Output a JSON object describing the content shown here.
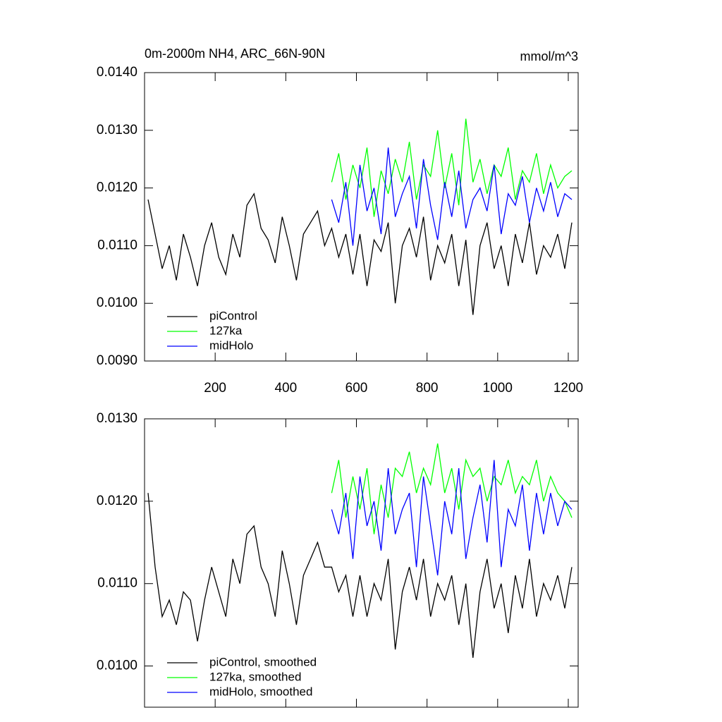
{
  "chart_data": [
    {
      "type": "line",
      "title": "0m-2000m NH4, ARC_66N-90N",
      "title_right": "mmol/m^3",
      "x": [
        10,
        30,
        50,
        70,
        90,
        110,
        130,
        150,
        170,
        190,
        210,
        230,
        250,
        270,
        290,
        310,
        330,
        350,
        370,
        390,
        410,
        430,
        450,
        470,
        490,
        510,
        530,
        550,
        570,
        590,
        610,
        630,
        650,
        670,
        690,
        710,
        730,
        750,
        770,
        790,
        810,
        830,
        850,
        870,
        890,
        910,
        930,
        950,
        970,
        990,
        1010,
        1030,
        1050,
        1070,
        1090,
        1110,
        1130,
        1150,
        1170,
        1190,
        1210
      ],
      "series": [
        {
          "name": "piControl",
          "color": "#000000",
          "values": [
            0.0118,
            0.0112,
            0.0106,
            0.011,
            0.0104,
            0.0112,
            0.0108,
            0.0103,
            0.011,
            0.0114,
            0.0108,
            0.0105,
            0.0112,
            0.0108,
            0.0117,
            0.0119,
            0.0113,
            0.0111,
            0.0107,
            0.0115,
            0.011,
            0.0104,
            0.0112,
            0.0114,
            0.0116,
            0.011,
            0.0113,
            0.0108,
            0.0112,
            0.0105,
            0.0112,
            0.0103,
            0.0111,
            0.0109,
            0.0114,
            0.01,
            0.011,
            0.0113,
            0.0108,
            0.0115,
            0.0104,
            0.011,
            0.0107,
            0.0112,
            0.0103,
            0.0111,
            0.0098,
            0.011,
            0.0114,
            0.0106,
            0.011,
            0.0103,
            0.0112,
            0.0107,
            0.0114,
            0.0105,
            0.011,
            0.0108,
            0.0112,
            0.0106,
            0.0114
          ]
        },
        {
          "name": "127ka",
          "color": "#00ff00",
          "values": [
            null,
            null,
            null,
            null,
            null,
            null,
            null,
            null,
            null,
            null,
            null,
            null,
            null,
            null,
            null,
            null,
            null,
            null,
            null,
            null,
            null,
            null,
            null,
            null,
            null,
            null,
            0.0121,
            0.0126,
            0.0118,
            0.0124,
            0.012,
            0.0127,
            0.0115,
            0.0123,
            0.0119,
            0.0125,
            0.0121,
            0.0128,
            0.0118,
            0.0124,
            0.0122,
            0.013,
            0.012,
            0.0126,
            0.0117,
            0.0132,
            0.0121,
            0.0125,
            0.0119,
            0.0124,
            0.0122,
            0.0127,
            0.0118,
            0.0123,
            0.0121,
            0.0126,
            0.0119,
            0.0124,
            0.012,
            0.0122,
            0.0123
          ]
        },
        {
          "name": "midHolo",
          "color": "#0000ff",
          "values": [
            null,
            null,
            null,
            null,
            null,
            null,
            null,
            null,
            null,
            null,
            null,
            null,
            null,
            null,
            null,
            null,
            null,
            null,
            null,
            null,
            null,
            null,
            null,
            null,
            null,
            null,
            0.0118,
            0.0114,
            0.0121,
            0.011,
            0.0124,
            0.0116,
            0.012,
            0.0112,
            0.0127,
            0.0115,
            0.0119,
            0.0122,
            0.0113,
            0.0125,
            0.0117,
            0.0111,
            0.0121,
            0.0115,
            0.0123,
            0.0113,
            0.0118,
            0.012,
            0.0116,
            0.0124,
            0.0112,
            0.0119,
            0.0117,
            0.0122,
            0.0114,
            0.012,
            0.0116,
            0.0121,
            0.0115,
            0.0119,
            0.0118
          ]
        }
      ],
      "xlim": [
        0,
        1228
      ],
      "xticks": [
        200,
        400,
        600,
        800,
        1000,
        1200
      ],
      "xtick_labels": true,
      "ylim": [
        0.009,
        0.014
      ],
      "yticks": [
        {
          "value": 0.009,
          "label": "0.0090"
        },
        {
          "value": 0.01,
          "label": "0.0100"
        },
        {
          "value": 0.011,
          "label": "0.0110"
        },
        {
          "value": 0.012,
          "label": "0.0120"
        },
        {
          "value": 0.013,
          "label": "0.0130"
        },
        {
          "value": 0.014,
          "label": "0.0140"
        }
      ],
      "legend": "lower left"
    },
    {
      "type": "line",
      "x": [
        10,
        30,
        50,
        70,
        90,
        110,
        130,
        150,
        170,
        190,
        210,
        230,
        250,
        270,
        290,
        310,
        330,
        350,
        370,
        390,
        410,
        430,
        450,
        470,
        490,
        510,
        530,
        550,
        570,
        590,
        610,
        630,
        650,
        670,
        690,
        710,
        730,
        750,
        770,
        790,
        810,
        830,
        850,
        870,
        890,
        910,
        930,
        950,
        970,
        990,
        1010,
        1030,
        1050,
        1070,
        1090,
        1110,
        1130,
        1150,
        1170,
        1190,
        1210
      ],
      "series": [
        {
          "name": "piControl, smoothed",
          "color": "#000000",
          "values": [
            0.0121,
            0.0112,
            0.0106,
            0.0108,
            0.0105,
            0.0109,
            0.0108,
            0.0103,
            0.0108,
            0.0112,
            0.0109,
            0.0106,
            0.0113,
            0.011,
            0.0116,
            0.0117,
            0.0112,
            0.011,
            0.0106,
            0.0114,
            0.011,
            0.0105,
            0.0111,
            0.0113,
            0.0115,
            0.0112,
            0.0112,
            0.0109,
            0.0111,
            0.0106,
            0.0111,
            0.0106,
            0.011,
            0.0108,
            0.0113,
            0.0102,
            0.0109,
            0.0112,
            0.0108,
            0.0113,
            0.0106,
            0.011,
            0.0108,
            0.0111,
            0.0105,
            0.011,
            0.0101,
            0.0109,
            0.0113,
            0.0107,
            0.011,
            0.0104,
            0.0111,
            0.0107,
            0.0113,
            0.0106,
            0.011,
            0.0108,
            0.0111,
            0.0107,
            0.0112
          ]
        },
        {
          "name": "127ka, smoothed",
          "color": "#00ff00",
          "values": [
            null,
            null,
            null,
            null,
            null,
            null,
            null,
            null,
            null,
            null,
            null,
            null,
            null,
            null,
            null,
            null,
            null,
            null,
            null,
            null,
            null,
            null,
            null,
            null,
            null,
            null,
            0.0121,
            0.0125,
            0.0118,
            0.0123,
            0.0119,
            0.0124,
            0.0116,
            0.0122,
            0.0118,
            0.0124,
            0.0123,
            0.0126,
            0.0121,
            0.0124,
            0.0122,
            0.0127,
            0.0121,
            0.0124,
            0.0119,
            0.0125,
            0.0123,
            0.0124,
            0.012,
            0.0123,
            0.0122,
            0.0125,
            0.0121,
            0.0123,
            0.0122,
            0.0125,
            0.012,
            0.0123,
            0.0121,
            0.012,
            0.0118
          ]
        },
        {
          "name": "midHolo, smoothed",
          "color": "#0000ff",
          "values": [
            null,
            null,
            null,
            null,
            null,
            null,
            null,
            null,
            null,
            null,
            null,
            null,
            null,
            null,
            null,
            null,
            null,
            null,
            null,
            null,
            null,
            null,
            null,
            null,
            null,
            null,
            0.0119,
            0.0116,
            0.0121,
            0.0113,
            0.0123,
            0.0117,
            0.012,
            0.0114,
            0.0124,
            0.0116,
            0.0119,
            0.0121,
            0.0112,
            0.0123,
            0.0117,
            0.0111,
            0.012,
            0.0116,
            0.0124,
            0.0113,
            0.0118,
            0.0122,
            0.0115,
            0.0125,
            0.0112,
            0.0119,
            0.0117,
            0.0122,
            0.0114,
            0.0121,
            0.0116,
            0.0121,
            0.0117,
            0.012,
            0.0119
          ]
        }
      ],
      "xlim": [
        0,
        1228
      ],
      "xticks": [
        200,
        400,
        600,
        800,
        1000,
        1200
      ],
      "xtick_labels": false,
      "ylim": [
        0.0095,
        0.013
      ],
      "yticks": [
        {
          "value": 0.01,
          "label": "0.0100"
        },
        {
          "value": 0.011,
          "label": "0.0110"
        },
        {
          "value": 0.012,
          "label": "0.0120"
        },
        {
          "value": 0.013,
          "label": "0.0130"
        }
      ],
      "legend": "lower left"
    }
  ]
}
